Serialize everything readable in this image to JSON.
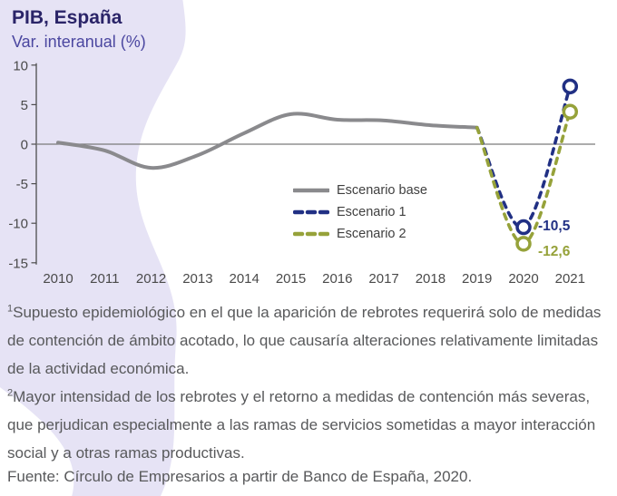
{
  "header": {
    "title": "PIB, España",
    "subtitle": "Var. interanual (%)"
  },
  "colors": {
    "title": "#2A2468",
    "subtitle": "#4B47A0",
    "band": "#E6E3F5",
    "axis_text": "#4A4A4A",
    "axis_line": "#4D4D4D",
    "zero_line": "#7A7A7A",
    "footnote_text": "#58595B",
    "scenario_base": "#8A8A8D",
    "scenario_1": "#213084",
    "scenario_2": "#96A23A"
  },
  "chart_data": {
    "type": "line",
    "title": "PIB, España",
    "subtitle": "Var. interanual (%)",
    "categories": [
      "2010",
      "2011",
      "2012",
      "2013",
      "2014",
      "2015",
      "2016",
      "2017",
      "2018",
      "2019",
      "2020",
      "2021"
    ],
    "yticks": [
      10,
      5,
      0,
      -5,
      -10,
      -15
    ],
    "ylim": [
      -15,
      10
    ],
    "grid": false,
    "legend_position": "inside-center-right",
    "series": [
      {
        "name": "Escenario base",
        "style": "solid",
        "color_key": "scenario_base",
        "values": [
          0.2,
          -0.8,
          -3.0,
          -1.4,
          1.4,
          3.8,
          3.1,
          3.0,
          2.4,
          2.1,
          null,
          null
        ]
      },
      {
        "name": "Escenario 1",
        "style": "dashed",
        "color_key": "scenario_1",
        "values": [
          null,
          null,
          null,
          null,
          null,
          null,
          null,
          null,
          null,
          2.1,
          -10.5,
          7.3
        ],
        "markers": [
          {
            "category": "2020",
            "value": -10.5
          },
          {
            "category": "2021",
            "value": 7.3
          }
        ]
      },
      {
        "name": "Escenario 2",
        "style": "dashed",
        "color_key": "scenario_2",
        "values": [
          null,
          null,
          null,
          null,
          null,
          null,
          null,
          null,
          null,
          2.1,
          -12.6,
          4.1
        ],
        "markers": [
          {
            "category": "2020",
            "value": -12.6
          },
          {
            "category": "2021",
            "value": 4.1
          }
        ]
      }
    ],
    "annotations": [
      {
        "label": "-10,5",
        "series": "Escenario 1",
        "category": "2020",
        "value": -10.5
      },
      {
        "label": "-12,6",
        "series": "Escenario 2",
        "category": "2020",
        "value": -12.6
      }
    ]
  },
  "footnotes": [
    {
      "sup": "1",
      "text": "Supuesto epidemiológico en el que la aparición de rebrotes requerirá solo de medidas de contención de ámbito acotado, lo que causaría alteraciones relativamente limitadas de la actividad económica."
    },
    {
      "sup": "2",
      "text": "Mayor intensidad de los rebrotes y el retorno a medidas de contención más severas, que perjudican especialmente a las ramas de servicios sometidas a mayor interacción social y a otras ramas productivas."
    }
  ],
  "source": "Fuente: Círculo de Empresarios a partir de Banco de España, 2020."
}
